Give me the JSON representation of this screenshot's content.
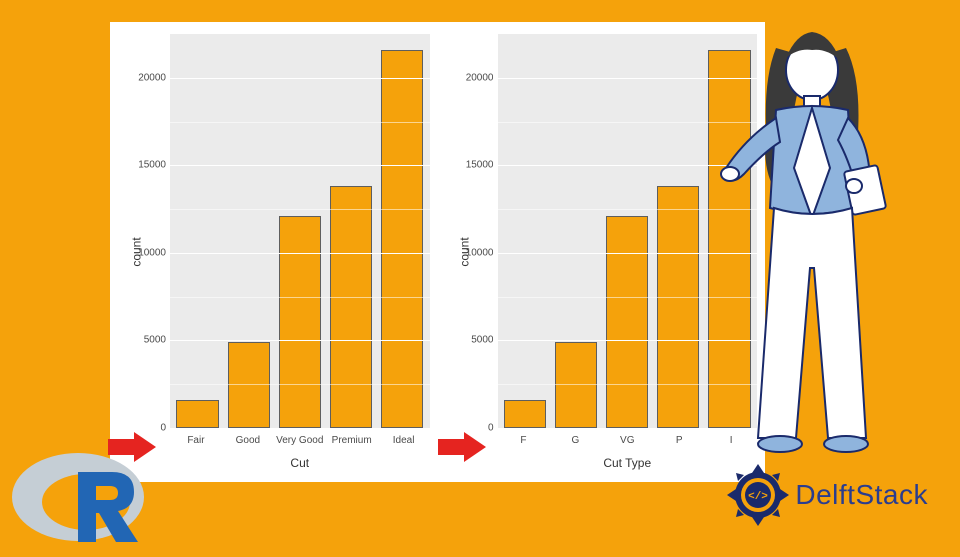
{
  "page_background": "#f5a20b",
  "chart_left": {
    "type": "bar",
    "xlabel": "Cut",
    "ylabel": "count",
    "categories": [
      "Fair",
      "Good",
      "Very Good",
      "Premium",
      "Ideal"
    ],
    "values": [
      1610,
      4900,
      12100,
      13800,
      21600
    ],
    "bar_color": "#f5a20b",
    "bar_border": "#5e5e5e",
    "plot_bg": "#ebebeb",
    "grid_color": "#ffffff",
    "ylim": [
      0,
      22500
    ],
    "yticks": [
      0,
      5000,
      10000,
      15000,
      20000
    ],
    "label_fontsize": 12,
    "tick_fontsize": 10
  },
  "chart_right": {
    "type": "bar",
    "xlabel": "Cut Type",
    "ylabel": "count",
    "categories": [
      "F",
      "G",
      "VG",
      "P",
      "I"
    ],
    "values": [
      1610,
      4900,
      12100,
      13800,
      21600
    ],
    "bar_color": "#f5a20b",
    "bar_border": "#5e5e5e",
    "plot_bg": "#ebebeb",
    "grid_color": "#ffffff",
    "ylim": [
      0,
      22500
    ],
    "yticks": [
      0,
      5000,
      10000,
      15000,
      20000
    ],
    "label_fontsize": 12,
    "tick_fontsize": 10
  },
  "arrow_color": "#e52420",
  "rlogo": {
    "ring_color": "#c5ced5",
    "r_color": "#2266b4"
  },
  "delftstack": {
    "text": "DelftStack",
    "text_color": "#2a3d8f",
    "gear_outer": "#1a2a6b",
    "gear_inner": "#f5a20b",
    "gear_symbol": "</>"
  }
}
